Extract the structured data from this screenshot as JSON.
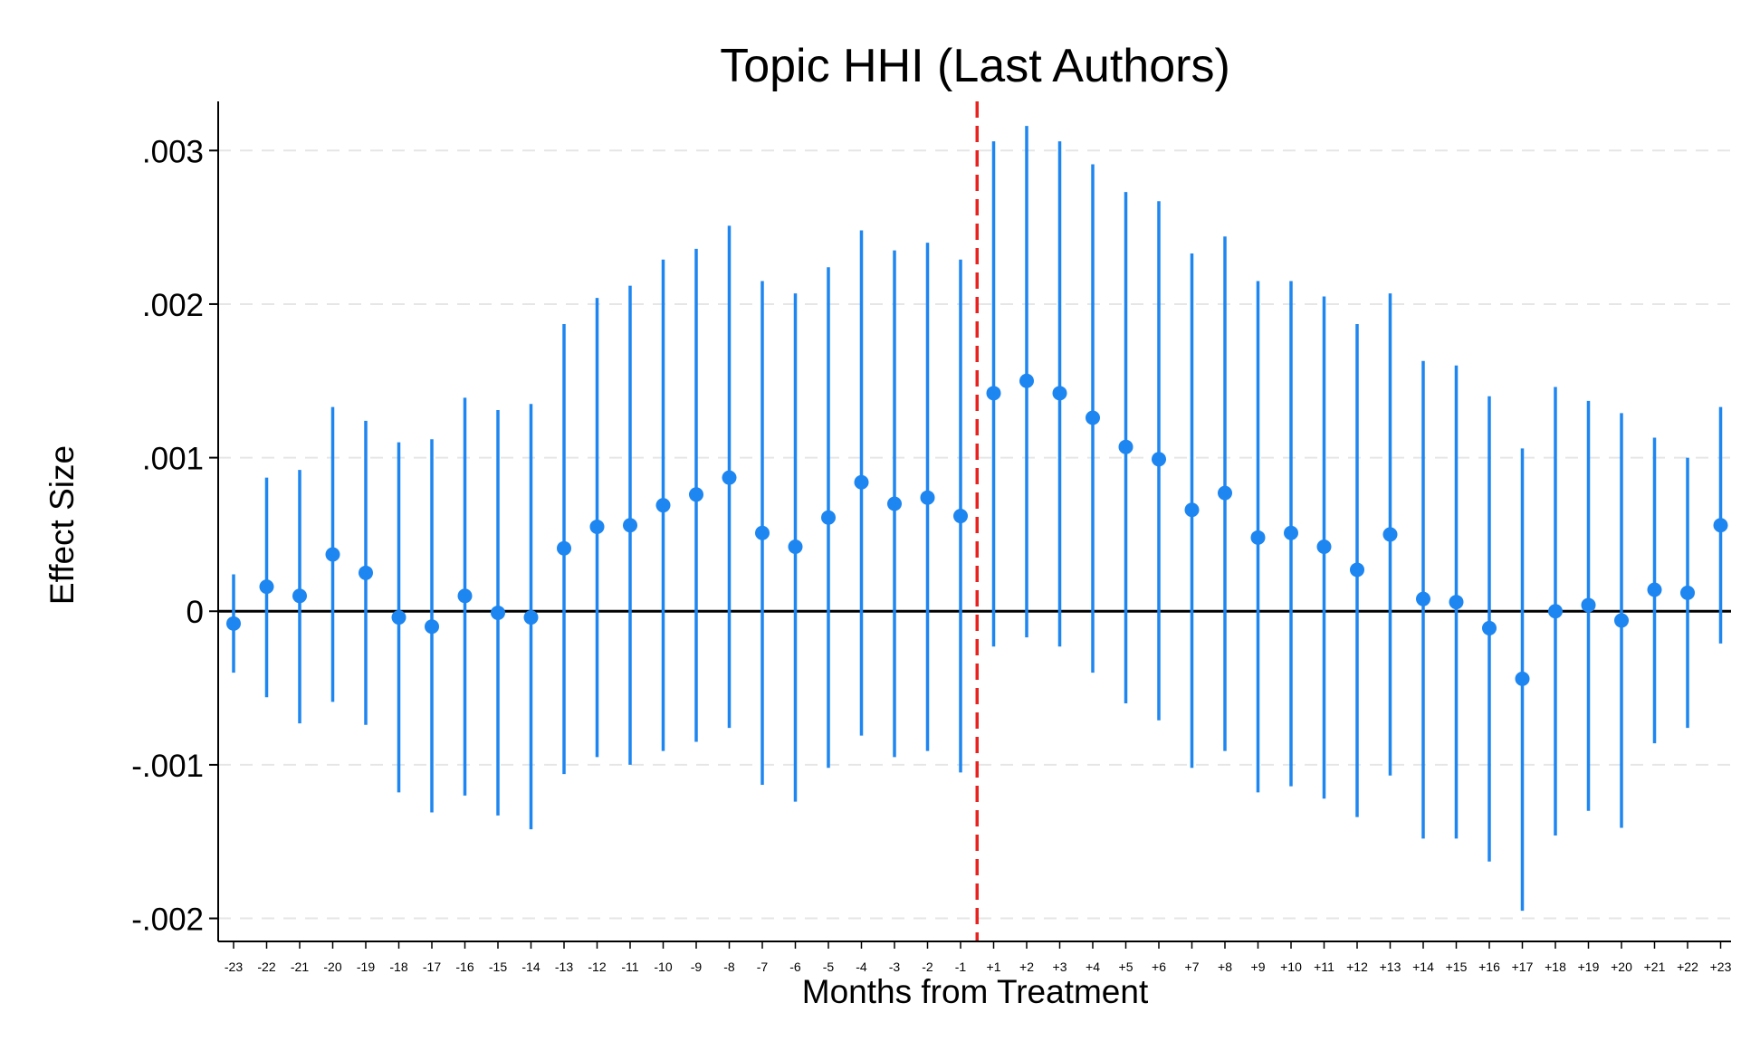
{
  "chart_data": {
    "type": "scatter",
    "title": "Topic HHI (Last Authors)",
    "xlabel": "Months from Treatment",
    "ylabel": "Effect Size",
    "ylim": [
      -0.00215,
      0.00332
    ],
    "yticks": [
      -0.002,
      -0.001,
      0,
      0.001,
      0.002,
      0.003
    ],
    "ytick_labels": [
      "-.002",
      "-.001",
      "0",
      ".001",
      ".002",
      ".003"
    ],
    "grid": true,
    "legend": "none",
    "reference_line_y": 0,
    "treatment_line": "between -1 and +1",
    "colors": {
      "marker": "#1e86f0",
      "ci": "#1e86f0",
      "treatment_line": "#e8231f",
      "zero_line": "#000000",
      "grid": "#e6e6e6"
    },
    "categories": [
      "-23",
      "-22",
      "-21",
      "-20",
      "-19",
      "-18",
      "-17",
      "-16",
      "-15",
      "-14",
      "-13",
      "-12",
      "-11",
      "-10",
      "-9",
      "-8",
      "-7",
      "-6",
      "-5",
      "-4",
      "-3",
      "-2",
      "-1",
      "+1",
      "+2",
      "+3",
      "+4",
      "+5",
      "+6",
      "+7",
      "+8",
      "+9",
      "+10",
      "+11",
      "+12",
      "+13",
      "+14",
      "+15",
      "+16",
      "+17",
      "+18",
      "+19",
      "+20",
      "+21",
      "+22",
      "+23"
    ],
    "series": [
      {
        "estimate": [
          -8e-05,
          0.00016,
          0.0001,
          0.00037,
          0.00025,
          -4e-05,
          -0.0001,
          0.0001,
          -1e-05,
          -4e-05,
          0.00041,
          0.00055,
          0.00056,
          0.00069,
          0.00076,
          0.00087,
          0.00051,
          0.00042,
          0.00061,
          0.00084,
          0.0007,
          0.00074,
          0.00062,
          0.00142,
          0.0015,
          0.00142,
          0.00126,
          0.00107,
          0.00099,
          0.00066,
          0.00077,
          0.00048,
          0.00051,
          0.00042,
          0.00027,
          0.0005,
          8e-05,
          6e-05,
          -0.00011,
          -0.00044,
          0,
          4e-05,
          -6e-05,
          0.00014,
          0.00012,
          0.00056
        ],
        "ci_low": [
          -0.0004,
          -0.00056,
          -0.00073,
          -0.00059,
          -0.00074,
          -0.00118,
          -0.00131,
          -0.0012,
          -0.00133,
          -0.00142,
          -0.00106,
          -0.00095,
          -0.001,
          -0.00091,
          -0.00085,
          -0.00076,
          -0.00113,
          -0.00124,
          -0.00102,
          -0.00081,
          -0.00095,
          -0.00091,
          -0.00105,
          -0.00023,
          -0.00017,
          -0.00023,
          -0.0004,
          -0.0006,
          -0.00071,
          -0.00102,
          -0.00091,
          -0.00118,
          -0.00114,
          -0.00122,
          -0.00134,
          -0.00107,
          -0.00148,
          -0.00148,
          -0.00163,
          -0.00195,
          -0.00146,
          -0.0013,
          -0.00141,
          -0.00086,
          -0.00076,
          -0.00021
        ],
        "ci_high": [
          0.00024,
          0.00087,
          0.00092,
          0.00133,
          0.00124,
          0.0011,
          0.00112,
          0.00139,
          0.00131,
          0.00135,
          0.00187,
          0.00204,
          0.00212,
          0.00229,
          0.00236,
          0.00251,
          0.00215,
          0.00207,
          0.00224,
          0.00248,
          0.00235,
          0.0024,
          0.00229,
          0.00306,
          0.00316,
          0.00306,
          0.00291,
          0.00273,
          0.00267,
          0.00233,
          0.00244,
          0.00215,
          0.00215,
          0.00205,
          0.00187,
          0.00207,
          0.00163,
          0.0016,
          0.0014,
          0.00106,
          0.00146,
          0.00137,
          0.00129,
          0.00113,
          0.001,
          0.00133
        ]
      }
    ]
  }
}
